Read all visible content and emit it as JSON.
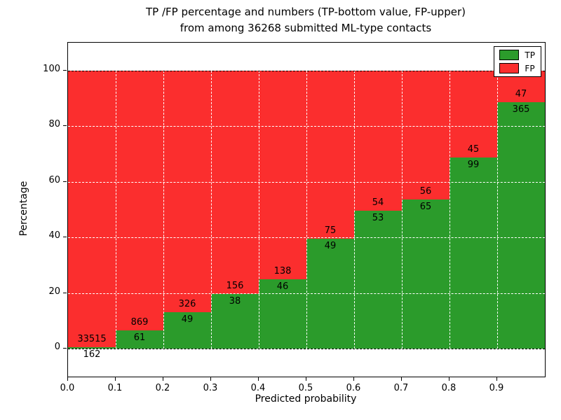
{
  "chart_data": {
    "type": "bar",
    "subtype": "stacked-percentage-histogram",
    "title_line1": "TP /FP percentage and numbers (TP-bottom value, FP-upper)",
    "title_line2": "from among 36268 submitted ML-type contacts",
    "xlabel": "Predicted probability",
    "ylabel": "Percentage",
    "total_contacts": 36268,
    "x_ticks": [
      "0.0",
      "0.1",
      "0.2",
      "0.3",
      "0.4",
      "0.5",
      "0.6",
      "0.7",
      "0.8",
      "0.9"
    ],
    "y_ticks": [
      0,
      20,
      40,
      60,
      80,
      100
    ],
    "xlim": [
      0,
      1
    ],
    "ylim": [
      -10,
      110
    ],
    "grid": "dashed",
    "legend_position": "upper right",
    "series": [
      {
        "name": "TP",
        "color": "#2b9b2b"
      },
      {
        "name": "FP",
        "color": "#fb2e2e"
      }
    ],
    "bins": [
      {
        "x_start": 0.0,
        "x_end": 0.1,
        "tp": 162,
        "fp": 33515,
        "tp_pct": 0.48
      },
      {
        "x_start": 0.1,
        "x_end": 0.2,
        "tp": 61,
        "fp": 869,
        "tp_pct": 6.56
      },
      {
        "x_start": 0.2,
        "x_end": 0.3,
        "tp": 49,
        "fp": 326,
        "tp_pct": 13.07
      },
      {
        "x_start": 0.3,
        "x_end": 0.4,
        "tp": 38,
        "fp": 156,
        "tp_pct": 19.59
      },
      {
        "x_start": 0.4,
        "x_end": 0.5,
        "tp": 46,
        "fp": 138,
        "tp_pct": 25.0
      },
      {
        "x_start": 0.5,
        "x_end": 0.6,
        "tp": 49,
        "fp": 75,
        "tp_pct": 39.52
      },
      {
        "x_start": 0.6,
        "x_end": 0.7,
        "tp": 53,
        "fp": 54,
        "tp_pct": 49.53
      },
      {
        "x_start": 0.7,
        "x_end": 0.8,
        "tp": 65,
        "fp": 56,
        "tp_pct": 53.72
      },
      {
        "x_start": 0.8,
        "x_end": 0.9,
        "tp": 99,
        "fp": 45,
        "tp_pct": 68.75
      },
      {
        "x_start": 0.9,
        "x_end": 1.0,
        "tp": 365,
        "fp": 47,
        "tp_pct": 88.59
      }
    ]
  }
}
